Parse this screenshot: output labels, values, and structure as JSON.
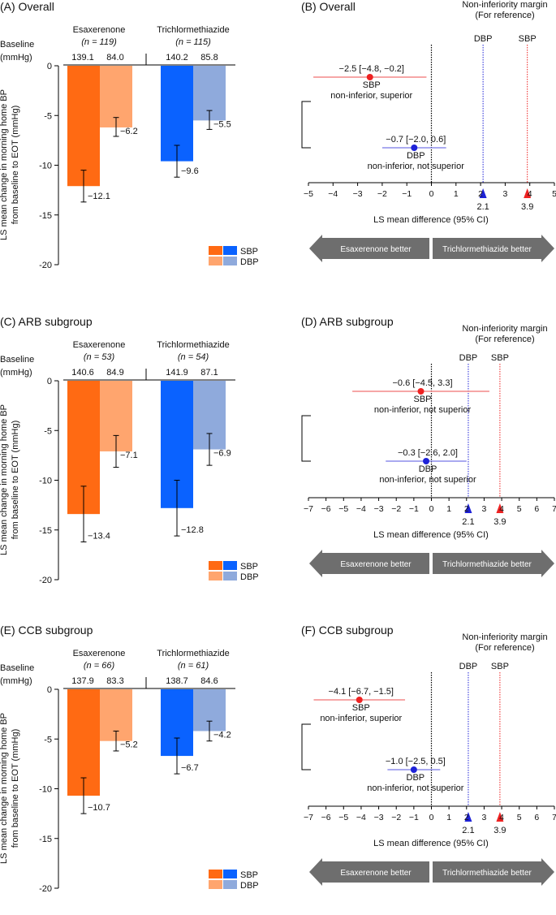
{
  "colors": {
    "esax_sbp": "#ff6a13",
    "esax_dbp": "#ffa56e",
    "tri_sbp": "#0a62ff",
    "tri_dbp": "#8faadc",
    "sbp_marker": "#ee2222",
    "dbp_marker": "#1e22d8",
    "sbp_line": "#f07070",
    "dbp_line": "#7878e8",
    "arrow": "#6e6e6e"
  },
  "bar_panels": [
    {
      "title": "(A) Overall",
      "baseline_label": [
        "Baseline",
        "(mmHg)"
      ],
      "ylabel": [
        "LS mean change in morning home BP",
        "from baseline to EOT (mmHg)"
      ],
      "legend": [
        "SBP",
        "DBP"
      ],
      "groups": [
        {
          "name": "Esaxerenone",
          "n_label": "(n = 119)",
          "baseline_sbp": "139.1",
          "baseline_dbp": "84.0"
        },
        {
          "name": "Trichlormethiazide",
          "n_label": "(n = 115)",
          "baseline_sbp": "140.2",
          "baseline_dbp": "85.8"
        }
      ],
      "chart_data": {
        "type": "bar",
        "title": "(A) Overall",
        "categories": [
          "Esaxerenone",
          "Trichlormethiazide"
        ],
        "series": [
          {
            "name": "SBP",
            "values": [
              -12.1,
              -9.6
            ],
            "labels": [
              "−12.1",
              "−9.6"
            ],
            "error_low": [
              -13.7,
              -11.2
            ],
            "error_high": [
              -10.5,
              -8.0
            ]
          },
          {
            "name": "DBP",
            "values": [
              -6.2,
              -5.5
            ],
            "labels": [
              "−6.2",
              "−5.5"
            ],
            "error_low": [
              -7.1,
              -6.4
            ],
            "error_high": [
              -5.2,
              -4.5
            ]
          }
        ],
        "ylim": [
          -20,
          0
        ],
        "yticks": [
          0,
          -5,
          -10,
          -15,
          -20
        ],
        "ytick_labels": [
          "0",
          "-5",
          "-10",
          "-15",
          "-20"
        ]
      }
    },
    {
      "title": "(C) ARB subgroup",
      "baseline_label": [
        "Baseline",
        "(mmHg)"
      ],
      "ylabel": [
        "LS mean change in morning home BP",
        "from baseline to EOT (mmHg)"
      ],
      "legend": [
        "SBP",
        "DBP"
      ],
      "groups": [
        {
          "name": "Esaxerenone",
          "n_label": "(n = 53)",
          "baseline_sbp": "140.6",
          "baseline_dbp": "84.9"
        },
        {
          "name": "Trichlormethiazide",
          "n_label": "(n = 54)",
          "baseline_sbp": "141.9",
          "baseline_dbp": "87.1"
        }
      ],
      "chart_data": {
        "type": "bar",
        "title": "(C) ARB subgroup",
        "categories": [
          "Esaxerenone",
          "Trichlormethiazide"
        ],
        "series": [
          {
            "name": "SBP",
            "values": [
              -13.4,
              -12.8
            ],
            "labels": [
              "−13.4",
              "−12.8"
            ],
            "error_low": [
              -16.2,
              -15.6
            ],
            "error_high": [
              -10.6,
              -10.0
            ]
          },
          {
            "name": "DBP",
            "values": [
              -7.1,
              -6.9
            ],
            "labels": [
              "−7.1",
              "−6.9"
            ],
            "error_low": [
              -8.7,
              -8.5
            ],
            "error_high": [
              -5.5,
              -5.3
            ]
          }
        ],
        "ylim": [
          -20,
          0
        ],
        "yticks": [
          0,
          -5,
          -10,
          -15,
          -20
        ],
        "ytick_labels": [
          "0",
          "-5",
          "-10",
          "-15",
          "-20"
        ]
      }
    },
    {
      "title": "(E) CCB subgroup",
      "baseline_label": [
        "Baseline",
        "(mmHg)"
      ],
      "ylabel": [
        "LS mean change in morning home BP",
        "from baseline to EOT (mmHg)"
      ],
      "legend": [
        "SBP",
        "DBP"
      ],
      "groups": [
        {
          "name": "Esaxerenone",
          "n_label": "(n = 66)",
          "baseline_sbp": "137.9",
          "baseline_dbp": "83.3"
        },
        {
          "name": "Trichlormethiazide",
          "n_label": "(n = 61)",
          "baseline_sbp": "138.7",
          "baseline_dbp": "84.6"
        }
      ],
      "chart_data": {
        "type": "bar",
        "title": "(E) CCB subgroup",
        "categories": [
          "Esaxerenone",
          "Trichlormethiazide"
        ],
        "series": [
          {
            "name": "SBP",
            "values": [
              -10.7,
              -6.7
            ],
            "labels": [
              "−10.7",
              "−6.7"
            ],
            "error_low": [
              -12.5,
              -8.5
            ],
            "error_high": [
              -8.9,
              -4.9
            ]
          },
          {
            "name": "DBP",
            "values": [
              -5.2,
              -4.2
            ],
            "labels": [
              "−5.2",
              "−4.2"
            ],
            "error_low": [
              -6.2,
              -5.2
            ],
            "error_high": [
              -4.2,
              -3.2
            ]
          }
        ],
        "ylim": [
          -20,
          0
        ],
        "yticks": [
          0,
          -5,
          -10,
          -15,
          -20
        ],
        "ytick_labels": [
          "0",
          "-5",
          "-10",
          "-15",
          "-20"
        ]
      }
    }
  ],
  "forest_panels": [
    {
      "title": "(B) Overall",
      "margin_header": [
        "Non-inferiority margin",
        "(For reference)"
      ],
      "margin_labels": [
        "DBP",
        "SBP"
      ],
      "xlabel": "LS mean difference (95% CI)",
      "arrow_left": "Esaxerenone better",
      "arrow_right": "Trichlormethiazide better",
      "chart_data": {
        "type": "forest",
        "title": "(B) Overall",
        "xlim": [
          -5,
          5
        ],
        "xticks": [
          -5,
          -4,
          -3,
          -2,
          -1,
          0,
          1,
          2,
          3,
          4,
          5
        ],
        "xtick_labels": [
          "−5",
          "−4",
          "−3",
          "−2",
          "−1",
          "0",
          "1",
          "2",
          "3",
          "4",
          "5"
        ],
        "margins": [
          {
            "name": "DBP",
            "value": 2.1,
            "label": "2.1"
          },
          {
            "name": "SBP",
            "value": 3.9,
            "label": "3.9"
          }
        ],
        "estimates": [
          {
            "name": "SBP",
            "estimate": -2.5,
            "ci_low": -4.8,
            "ci_high": -0.2,
            "label": "−2.5 [−4.8, −0.2]",
            "conclusion": "non-inferior, superior"
          },
          {
            "name": "DBP",
            "estimate": -0.7,
            "ci_low": -2.0,
            "ci_high": 0.6,
            "label": "−0.7 [−2.0, 0.6]",
            "conclusion": "non-inferior, not superior"
          }
        ]
      }
    },
    {
      "title": "(D) ARB subgroup",
      "margin_header": [
        "Non-inferiority margin",
        "(For reference)"
      ],
      "margin_labels": [
        "DBP",
        "SBP"
      ],
      "xlabel": "LS mean difference (95% CI)",
      "arrow_left": "Esaxerenone better",
      "arrow_right": "Trichlormethiazide better",
      "chart_data": {
        "type": "forest",
        "title": "(D) ARB subgroup",
        "xlim": [
          -7,
          7
        ],
        "xticks": [
          -7,
          -6,
          -5,
          -4,
          -3,
          -2,
          -1,
          0,
          1,
          2,
          3,
          4,
          5,
          6,
          7
        ],
        "xtick_labels": [
          "−7",
          "−6",
          "−5",
          "−4",
          "−3",
          "−2",
          "−1",
          "0",
          "1",
          "2",
          "3",
          "4",
          "5",
          "6",
          "7"
        ],
        "margins": [
          {
            "name": "DBP",
            "value": 2.1,
            "label": "2.1"
          },
          {
            "name": "SBP",
            "value": 3.9,
            "label": "3.9"
          }
        ],
        "estimates": [
          {
            "name": "SBP",
            "estimate": -0.6,
            "ci_low": -4.5,
            "ci_high": 3.3,
            "label": "−0.6 [−4.5, 3.3]",
            "conclusion": "non-inferior, not superior"
          },
          {
            "name": "DBP",
            "estimate": -0.3,
            "ci_low": -2.6,
            "ci_high": 2.0,
            "label": "−0.3 [−2.6, 2.0]",
            "conclusion": "non-inferior, not superior"
          }
        ]
      }
    },
    {
      "title": "(F) CCB subgroup",
      "margin_header": [
        "Non-inferiority margin",
        "(For reference)"
      ],
      "margin_labels": [
        "DBP",
        "SBP"
      ],
      "xlabel": "LS mean difference (95% CI)",
      "arrow_left": "Esaxerenone better",
      "arrow_right": "Trichlormethiazide better",
      "chart_data": {
        "type": "forest",
        "title": "(F) CCB subgroup",
        "xlim": [
          -7,
          7
        ],
        "xticks": [
          -7,
          -6,
          -5,
          -4,
          -3,
          -2,
          -1,
          0,
          1,
          2,
          3,
          4,
          5,
          6,
          7
        ],
        "xtick_labels": [
          "−7",
          "−6",
          "−5",
          "−4",
          "−3",
          "−2",
          "−1",
          "0",
          "1",
          "2",
          "3",
          "4",
          "5",
          "6",
          "7"
        ],
        "margins": [
          {
            "name": "DBP",
            "value": 2.1,
            "label": "2.1"
          },
          {
            "name": "SBP",
            "value": 3.9,
            "label": "3.9"
          }
        ],
        "estimates": [
          {
            "name": "SBP",
            "estimate": -4.1,
            "ci_low": -6.7,
            "ci_high": -1.5,
            "label": "−4.1 [−6.7, −1.5]",
            "conclusion": "non-inferior, superior"
          },
          {
            "name": "DBP",
            "estimate": -1.0,
            "ci_low": -2.5,
            "ci_high": 0.5,
            "label": "−1.0 [−2.5, 0.5]",
            "conclusion": "non-inferior, not superior"
          }
        ]
      }
    }
  ]
}
